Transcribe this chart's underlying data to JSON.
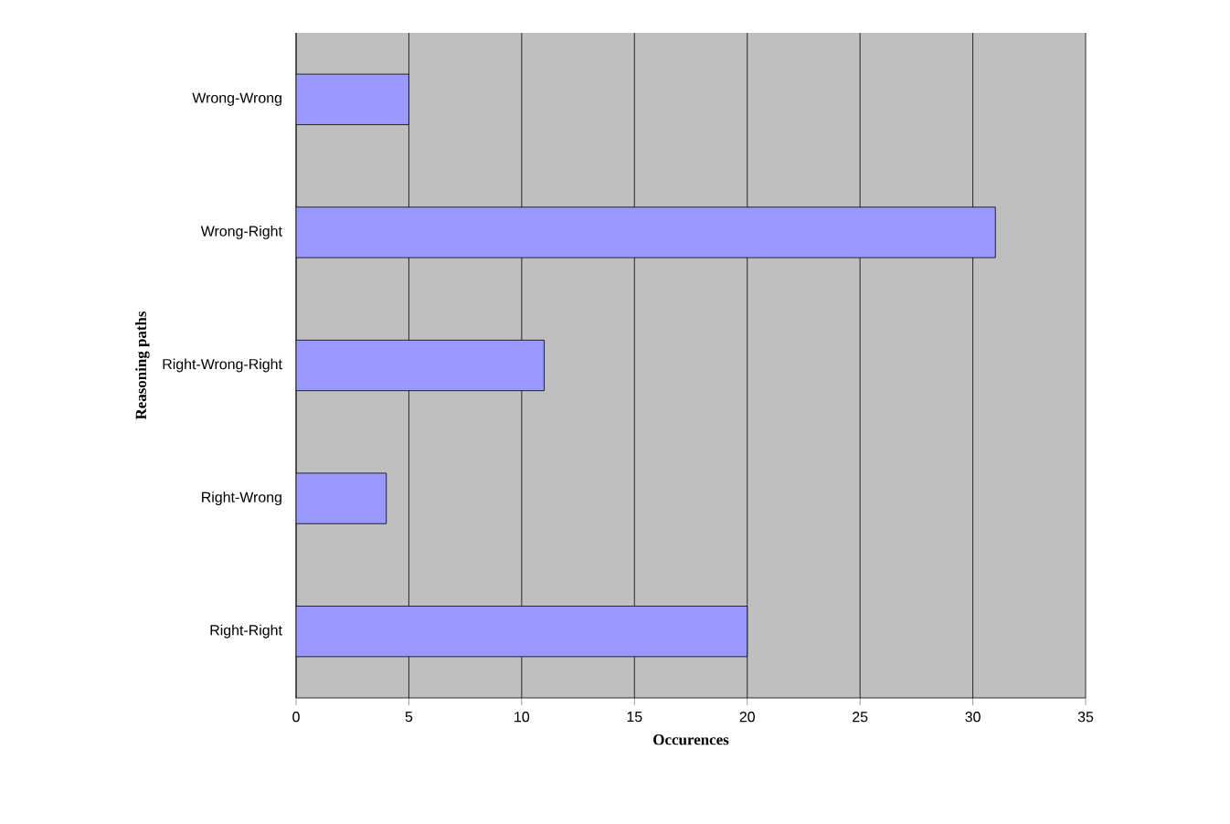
{
  "chart_data": {
    "type": "bar",
    "orientation": "horizontal",
    "categories": [
      "Wrong-Wrong",
      "Wrong-Right",
      "Right-Wrong-Right",
      "Right-Wrong",
      "Right-Right"
    ],
    "values": [
      5,
      31,
      11,
      4,
      20
    ],
    "color": "#9999ff",
    "xlim": [
      0,
      35
    ],
    "xticks": [
      0,
      5,
      10,
      15,
      20,
      25,
      30,
      35
    ],
    "grid": "x",
    "xlabel": "Occurences",
    "ylabel": "Reasoning paths"
  }
}
